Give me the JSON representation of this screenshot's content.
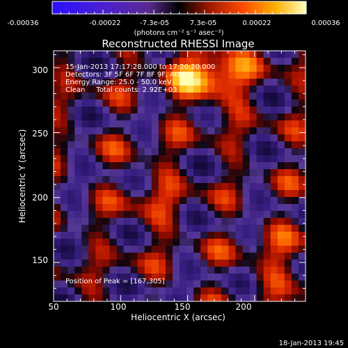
{
  "chart_data": {
    "type": "heatmap",
    "title": "Reconstructed RHESSI Image",
    "xlabel": "Heliocentric X (arcsec)",
    "ylabel": "Heliocentric Y (arcsec)",
    "xlim": [
      50,
      238
    ],
    "ylim": [
      120,
      313
    ],
    "x_ticks": [
      50,
      100,
      150,
      200
    ],
    "y_ticks": [
      150,
      200,
      250,
      300
    ],
    "colorbar": {
      "ticks": [
        "-0.00036",
        "-0.00022",
        "-7.3e-05",
        "7.3e-05",
        "0.00022",
        "0.00036"
      ],
      "unit_label": "(photons cm⁻² s⁻¹ asec⁻²)",
      "range": [
        -0.00036,
        0.00036
      ]
    },
    "annotations": {
      "line1": "15-Jan-2013 17:17:28.000 to 17:20:20.000",
      "line2": "Detectors: 3F 5F 6F 7F 8F 9F, Att 0",
      "line3": "Energy Range: 25.0 - 50.0 keV",
      "line4": "Clean     Total counts: 2.92E+03",
      "peak": "Position of Peak = [167,305]"
    },
    "peak_position": [
      167,
      305
    ],
    "grid": false
  },
  "footer": {
    "timestamp": "18-Jan-2013 19:45"
  }
}
